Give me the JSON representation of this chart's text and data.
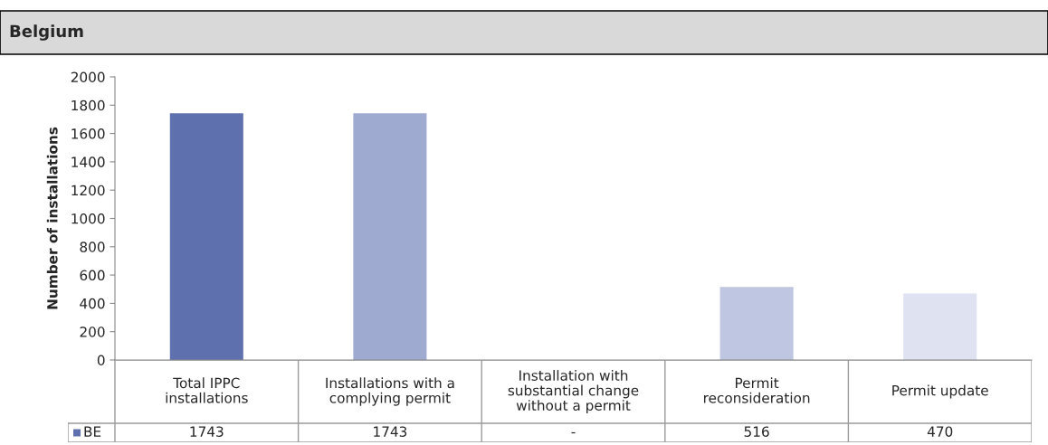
{
  "chart_data": {
    "type": "bar",
    "title": "Belgium",
    "ylabel": "Number of installations",
    "categories": [
      "Total IPPC\ninstallations",
      "Installations with a\ncomplying permit",
      "Installation with\nsubstantial change\nwithout a permit",
      "Permit\nreconsideration",
      "Permit update"
    ],
    "series": [
      {
        "name": "BE",
        "color": "#5f70ae",
        "colors": [
          "#5f70ae",
          "#9faad0",
          "#afb8d8",
          "#bfc6e1",
          "#dfe2f0"
        ],
        "values": [
          1743,
          1743,
          null,
          516,
          470
        ],
        "value_labels": [
          "1743",
          "1743",
          "-",
          "516",
          "470"
        ]
      }
    ],
    "ylim": [
      0,
      2000
    ],
    "yticks": [
      0,
      200,
      400,
      600,
      800,
      1000,
      1200,
      1400,
      1600,
      1800,
      2000
    ],
    "grid": false,
    "legend": "bottom"
  }
}
